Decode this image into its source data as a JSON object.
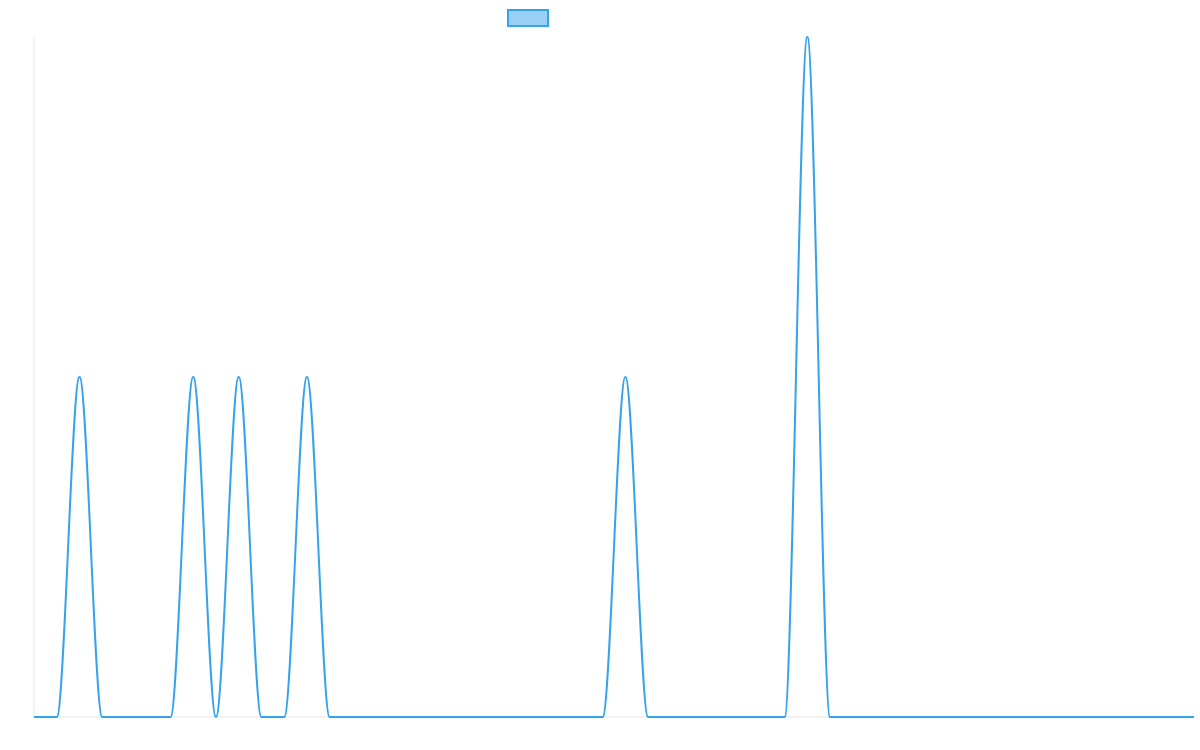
{
  "chart_data": {
    "type": "line",
    "title": "",
    "xlabel": "",
    "ylabel": "",
    "grid": false,
    "legend": "top-center",
    "series": [
      {
        "color": "#36A2EB",
        "fill": "#9AD0F5",
        "x": [
          0,
          0.5,
          1,
          1.5,
          2,
          2.5,
          3,
          3.5,
          4,
          4.5,
          5,
          5.5,
          6,
          6.5,
          7,
          7.5,
          8,
          8.5,
          9,
          9.5,
          10,
          10.5,
          11,
          11.5,
          12,
          12.5,
          13,
          13.5,
          14,
          14.5,
          15,
          15.5,
          16,
          16.5,
          17,
          17.5,
          18,
          18.5,
          19,
          19.5,
          20,
          20.5,
          21,
          21.5,
          22,
          22.5,
          23,
          23.5,
          24,
          24.5,
          25,
          25.5
        ],
        "values": [
          0,
          0,
          1,
          0,
          0,
          0,
          0,
          1,
          0,
          1,
          0,
          0,
          1,
          0,
          0,
          0,
          0,
          0,
          0,
          0,
          0,
          0,
          0,
          0,
          0,
          0,
          1,
          0,
          0,
          0,
          0,
          0,
          0,
          0,
          2,
          0,
          0,
          0,
          0,
          0,
          0,
          0,
          0,
          0,
          0,
          0,
          0,
          0,
          0,
          0,
          0,
          0
        ]
      }
    ],
    "xlim": [
      0,
      25.5
    ],
    "ylim": [
      0,
      2
    ]
  }
}
